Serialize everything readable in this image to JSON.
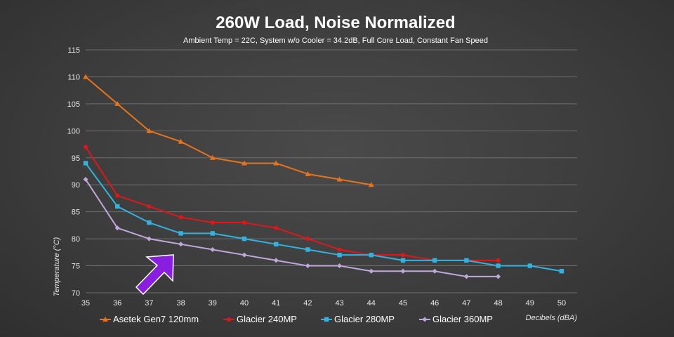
{
  "chart_data": {
    "type": "line",
    "title": "260W Load, Noise Normalized",
    "subtitle": "Ambient Temp = 22C, System w/o Cooler = 34.2dB, Full Core Load, Constant Fan Speed",
    "xlabel": "Decibels (dBA)",
    "ylabel": "Temperature (°C)",
    "xlim": [
      35,
      50
    ],
    "ylim": [
      70,
      115
    ],
    "x_ticks": [
      "35",
      "36",
      "37",
      "38",
      "39",
      "40",
      "41",
      "42",
      "43",
      "44",
      "45",
      "46",
      "47",
      "48",
      "49",
      "50"
    ],
    "y_ticks": [
      "70",
      "75",
      "80",
      "85",
      "90",
      "95",
      "100",
      "105",
      "110",
      "115"
    ],
    "grid": "horizontal",
    "legend_position": "bottom",
    "series": [
      {
        "name": "Asetek Gen7 120mm",
        "color": "#e8731c",
        "marker": "triangle",
        "x": [
          35,
          36,
          37,
          38,
          39,
          40,
          41,
          42,
          43,
          44
        ],
        "y": [
          110,
          105,
          100,
          98,
          95,
          94,
          94,
          92,
          91,
          90
        ]
      },
      {
        "name": "Glacier 240MP",
        "color": "#e0161b",
        "marker": "circle",
        "x": [
          35,
          36,
          37,
          38,
          39,
          40,
          41,
          42,
          43,
          44,
          45,
          46,
          47,
          48
        ],
        "y": [
          97,
          88,
          86,
          84,
          83,
          83,
          82,
          80,
          78,
          77,
          77,
          76,
          76,
          76
        ]
      },
      {
        "name": "Glacier 280MP",
        "color": "#33b2e0",
        "marker": "square",
        "x": [
          35,
          36,
          37,
          38,
          39,
          40,
          41,
          42,
          43,
          44,
          45,
          46,
          47,
          48,
          49,
          50
        ],
        "y": [
          94,
          86,
          83,
          81,
          81,
          80,
          79,
          78,
          77,
          77,
          76,
          76,
          76,
          75,
          75,
          74
        ]
      },
      {
        "name": "Glacier 360MP",
        "color": "#c0a8dc",
        "marker": "diamond",
        "x": [
          35,
          36,
          37,
          38,
          39,
          40,
          41,
          42,
          43,
          44,
          45,
          46,
          47,
          48
        ],
        "y": [
          91,
          82,
          80,
          79,
          78,
          77,
          76,
          75,
          75,
          74,
          74,
          74,
          73,
          73
        ]
      }
    ],
    "annotation": {
      "type": "arrow",
      "color": "#8a1ee0",
      "points_to": "Glacier 360MP"
    }
  }
}
